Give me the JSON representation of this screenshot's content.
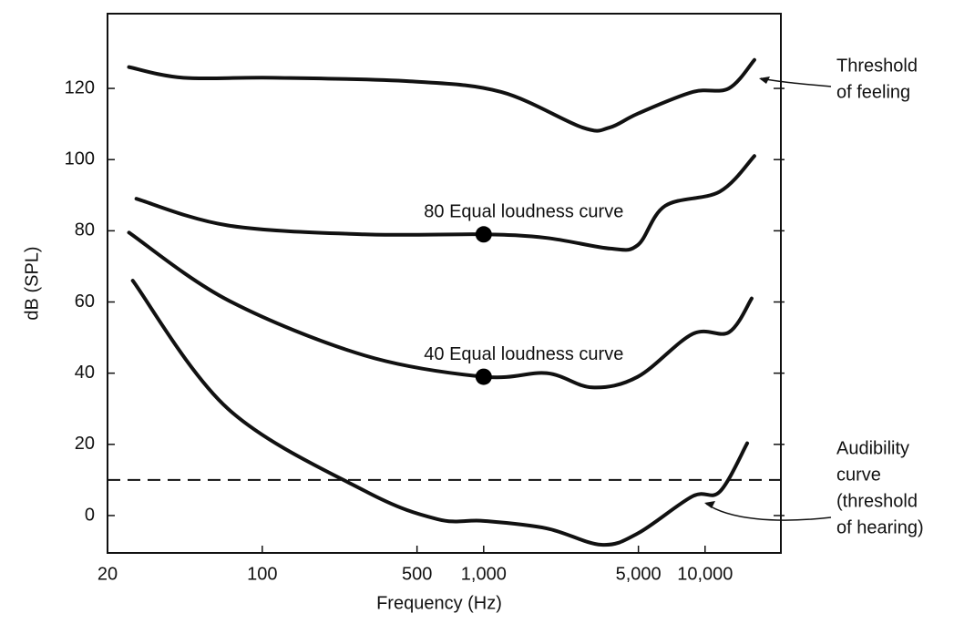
{
  "chart_data": {
    "type": "line",
    "xlabel": "Frequency (Hz)",
    "ylabel": "dB (SPL)",
    "xscale": "log",
    "xlim": [
      20,
      22000
    ],
    "ylim": [
      -10.5,
      141
    ],
    "xticks": [
      20,
      100,
      500,
      {
        "value": 1000,
        "label": "1,000"
      },
      {
        "value": 5000,
        "label": "5,000"
      },
      {
        "value": 10000,
        "label": "10,000"
      }
    ],
    "yticks": [
      0,
      20,
      40,
      60,
      80,
      100,
      120
    ],
    "series": [
      {
        "color": "#111111",
        "x": [
          25,
          44,
          112,
          464,
          1200,
          2800,
          3700,
          5000,
          8800,
          12800,
          16700
        ],
        "values": [
          126,
          123,
          123,
          122,
          119,
          109,
          109,
          113,
          119,
          120,
          128
        ]
      },
      {
        "color": "#111111",
        "x": [
          27,
          70,
          289,
          1000,
          1926,
          3740,
          4970,
          6600,
          11650,
          16700
        ],
        "values": [
          89,
          81.5,
          79,
          79,
          78,
          75,
          76,
          87,
          91,
          101
        ]
      },
      {
        "color": "#111111",
        "x": [
          25,
          70,
          289,
          1000,
          1926,
          3090,
          4970,
          8770,
          12820,
          16240
        ],
        "values": [
          79.5,
          60.5,
          45,
          39,
          40,
          36,
          39,
          51,
          51.5,
          61
        ]
      },
      {
        "color": "#111111",
        "x": [
          26,
          70,
          289,
          618,
          1000,
          1926,
          3400,
          4970,
          8770,
          11650,
          15500
        ],
        "values": [
          66,
          30,
          7,
          -1,
          -1.5,
          -3.6,
          -8.2,
          -5,
          5.4,
          6.7,
          20.3
        ]
      }
    ],
    "points": [
      {
        "x": 1000,
        "y": 79,
        "label": "80 Equal loudness curve"
      },
      {
        "x": 1000,
        "y": 39,
        "label": "40 Equal loudness curve"
      }
    ],
    "reference_line": {
      "value": 10,
      "style": "dashed"
    },
    "annotations": [
      {
        "lines": [
          "Threshold",
          "of feeling"
        ]
      },
      {
        "lines": [
          "Audibility",
          "curve",
          "(threshold",
          "of hearing)"
        ]
      }
    ]
  }
}
